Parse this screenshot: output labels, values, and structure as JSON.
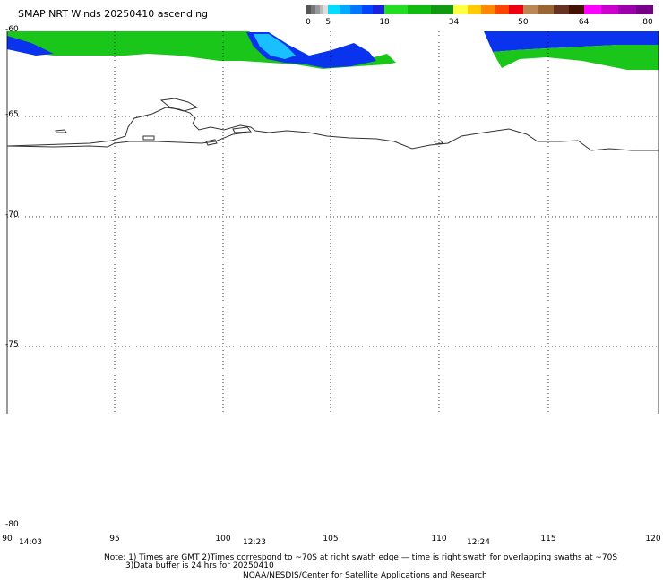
{
  "title": "SMAP NRT Winds 20250410 ascending",
  "colorbar": {
    "segments": [
      {
        "from": 0,
        "to": 5,
        "colors": [
          "#555555",
          "#777777",
          "#999999",
          "#bbbbbb",
          "#dddddd"
        ]
      },
      {
        "from": 5,
        "to": 18,
        "colors": [
          "#00ddff",
          "#00aaff",
          "#0077ff",
          "#0044ff",
          "#1a22e0"
        ]
      },
      {
        "from": 18,
        "to": 34,
        "colors": [
          "#22dd22",
          "#11bb11",
          "#119911"
        ]
      },
      {
        "from": 34,
        "to": 50,
        "colors": [
          "#ffff44",
          "#ffcc00",
          "#ff8800",
          "#ff4400",
          "#ee0011"
        ]
      },
      {
        "from": 50,
        "to": 64,
        "colors": [
          "#bb8855",
          "#996633",
          "#663322",
          "#441100"
        ]
      },
      {
        "from": 64,
        "to": 80,
        "colors": [
          "#ff00ff",
          "#cc00cc",
          "#9900aa",
          "#770088"
        ]
      }
    ],
    "tick_labels": [
      "0",
      "5",
      "18",
      "34",
      "50",
      "64",
      "80"
    ]
  },
  "lat_labels": [
    "-60",
    "-65",
    "-70",
    "-75",
    "-80"
  ],
  "lon_labels": [
    "90",
    "95",
    "100",
    "105",
    "110",
    "115",
    "120"
  ],
  "time_labels": [
    "14:03",
    "12:23",
    "12:24"
  ],
  "notes": {
    "line1": "Note: 1) Times are GMT 2)Times correspond to ~70S at right swath edge — time is right swath for overlapping swaths at ~70S",
    "line2": "3)Data buffer is 24 hrs for 20250410",
    "line3": "NOAA/NESDIS/Center for Satellite Applications and Research"
  }
}
